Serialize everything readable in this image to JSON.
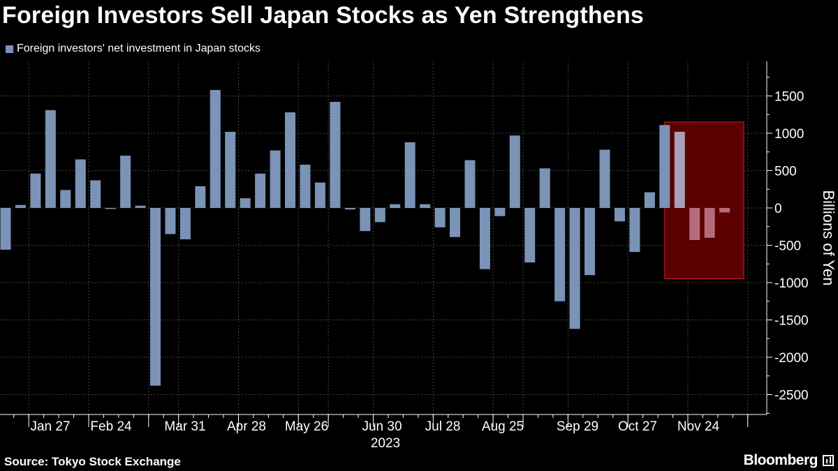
{
  "title": "Foreign Investors Sell Japan Stocks as Yen Strengthens",
  "legend_label": "Foreign investors' net investment in Japan stocks",
  "source": "Source: Tokyo Stock Exchange",
  "brand": "Bloomberg",
  "colors": {
    "background": "#000000",
    "bar": "#7b93b6",
    "highlight_fill": "#6b0000",
    "highlight_border": "#d42020",
    "highlight_bar": "#b76b7a",
    "grid": "#5a5a5a"
  },
  "chart_data": {
    "type": "bar",
    "title": "Foreign Investors Sell Japan Stocks as Yen Strengthens",
    "ylabel": "Billions of Yen",
    "xlabel": "2023",
    "ylim": [
      -2800,
      1950
    ],
    "yticks": [
      1500,
      1000,
      500,
      0,
      -500,
      -1000,
      -1500,
      -2000,
      -2500
    ],
    "y_axis_side": "right",
    "x_tick_labels": [
      "Jan 27",
      "Feb 24",
      "Mar 31",
      "Apr 28",
      "May 26",
      "Jun 30",
      "Jul 28",
      "Aug 25",
      "Sep 29",
      "Oct 27",
      "Nov 24"
    ],
    "x_year_label": "2023",
    "values": [
      -560,
      40,
      460,
      1310,
      240,
      650,
      370,
      -5,
      700,
      30,
      -2380,
      -350,
      -420,
      290,
      1580,
      1020,
      130,
      460,
      770,
      1280,
      580,
      340,
      1420,
      -20,
      -310,
      -190,
      50,
      880,
      50,
      -260,
      -390,
      640,
      -820,
      -110,
      970,
      -730,
      530,
      -1250,
      -1620,
      -900,
      780,
      -180,
      -590,
      210,
      1110,
      1020,
      -430,
      -400,
      -60
    ],
    "highlight": {
      "start_index": 45,
      "end_index": 48,
      "ymin": -950,
      "ymax": 1150
    },
    "series": [
      {
        "name": "Foreign investors' net investment in Japan stocks"
      }
    ]
  }
}
